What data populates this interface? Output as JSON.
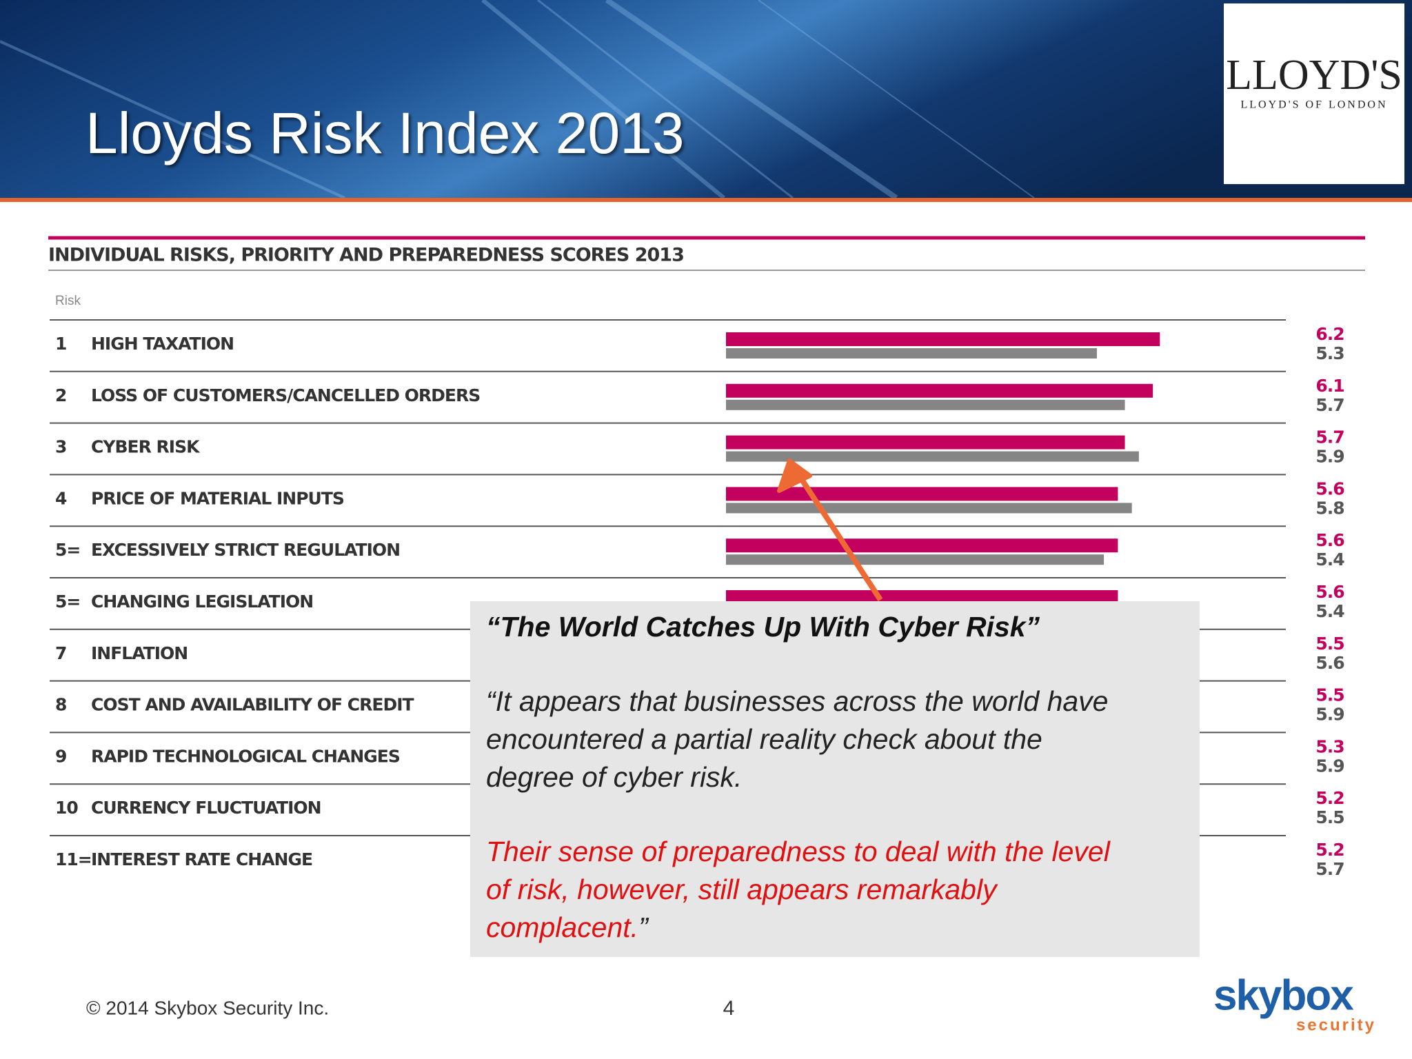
{
  "slide": {
    "title": "Lloyds Risk Index 2013",
    "logo": {
      "name": "LLOYD'S",
      "subtitle": "LLOYD'S OF LONDON"
    },
    "callout": {
      "heading": "“The World Catches Up With Cyber Risk”",
      "lines": [
        "“It appears that businesses across the world have",
        "encountered a partial reality check about the",
        "degree of cyber risk."
      ],
      "red_lines": [
        "Their sense of preparedness to deal with the level",
        "of risk, however, still appears remarkably",
        "complacent."
      ],
      "closing": "”"
    },
    "footer": "© 2014 Skybox Security Inc.",
    "page_number": "4",
    "brand": {
      "name": "skybox",
      "tagline": "security"
    }
  },
  "chart_data": {
    "type": "bar",
    "orientation": "horizontal",
    "title": "INDIVIDUAL RISKS, PRIORITY AND PREPAREDNESS SCORES 2013",
    "column_header": "Risk",
    "ranks": [
      "1",
      "2",
      "3",
      "4",
      "5=",
      "5=",
      "7",
      "8",
      "9",
      "10",
      "11="
    ],
    "categories": [
      "HIGH TAXATION",
      "LOSS OF CUSTOMERS/CANCELLED ORDERS",
      "CYBER RISK",
      "PRICE OF MATERIAL INPUTS",
      "EXCESSIVELY STRICT REGULATION",
      "CHANGING LEGISLATION",
      "INFLATION",
      "COST AND AVAILABILITY OF CREDIT",
      "RAPID TECHNOLOGICAL CHANGES",
      "CURRENCY FLUCTUATION",
      "INTEREST RATE CHANGE"
    ],
    "series": [
      {
        "color": "#c4005e",
        "values": [
          6.2,
          6.1,
          5.7,
          5.6,
          5.6,
          5.6,
          5.5,
          5.5,
          5.3,
          5.2,
          5.2
        ]
      },
      {
        "color": "#858585",
        "values": [
          5.3,
          5.7,
          5.9,
          5.8,
          5.4,
          5.4,
          5.6,
          5.9,
          5.9,
          5.5,
          5.7
        ]
      }
    ]
  }
}
